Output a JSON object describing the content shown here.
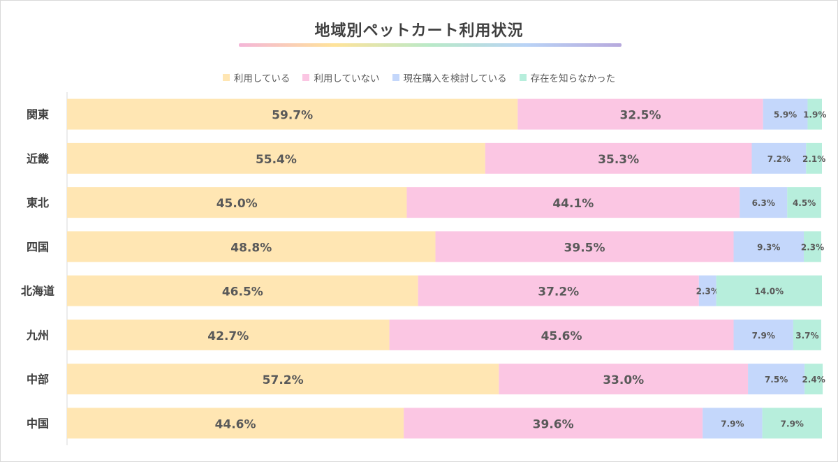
{
  "chart_data": {
    "type": "bar",
    "orientation": "horizontal",
    "stacked": true,
    "title": "地域別ペットカート利用状況",
    "categories": [
      "関東",
      "近畿",
      "東北",
      "四国",
      "北海道",
      "九州",
      "中部",
      "中国"
    ],
    "series": [
      {
        "name": "利用している",
        "color": "#ffe6b3",
        "values": [
          59.7,
          55.4,
          45.0,
          48.8,
          46.5,
          42.7,
          57.2,
          44.6
        ]
      },
      {
        "name": "利用していない",
        "color": "#fbc6e3",
        "values": [
          32.5,
          35.3,
          44.1,
          39.5,
          37.2,
          45.6,
          33.0,
          39.6
        ]
      },
      {
        "name": "現在購入を検討している",
        "color": "#c4d7fb",
        "values": [
          5.9,
          7.2,
          6.3,
          9.3,
          2.3,
          7.9,
          7.5,
          7.9
        ]
      },
      {
        "name": "存在を知らなかった",
        "color": "#b7eedc",
        "values": [
          1.9,
          2.1,
          4.5,
          2.3,
          14.0,
          3.7,
          2.4,
          7.9
        ]
      }
    ],
    "value_labels": true,
    "label_suffix": "%",
    "xlim": [
      0,
      100
    ],
    "legend_position": "top",
    "grid": false
  },
  "colors": {
    "label_text": "#595959",
    "axis_text": "#404040",
    "axis_line": "#d9d9d9",
    "title_gradient": [
      "#f4b6d8",
      "#ffe39a",
      "#b9e9c8",
      "#b9d3f6",
      "#b7a9dd"
    ]
  }
}
